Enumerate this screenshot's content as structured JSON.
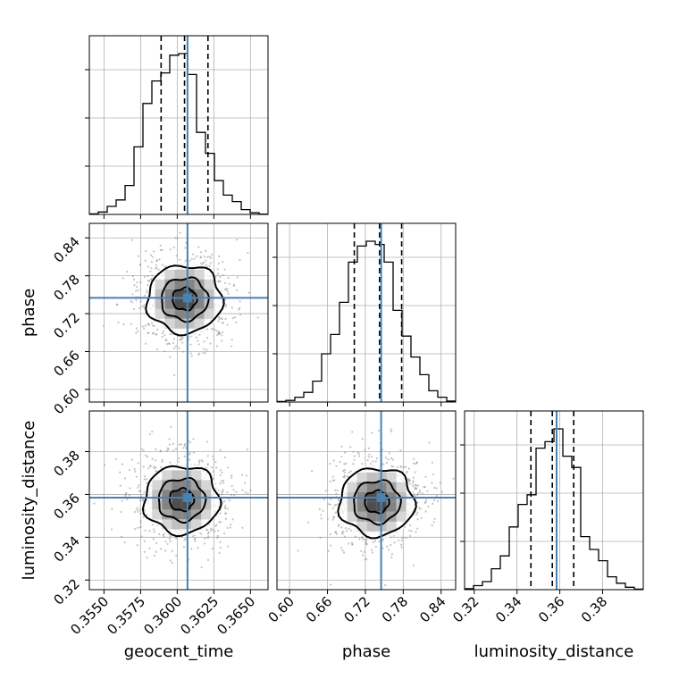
{
  "chart_data": {
    "type": "corner",
    "parameters": [
      "geocent_time",
      "phase",
      "luminosity_distance"
    ],
    "axis_labels": {
      "geocent_time": "geocent_time",
      "phase": "phase",
      "luminosity_distance": "luminosity_distance"
    },
    "ticks": {
      "geocent_time": {
        "values": [
          0.355,
          0.3575,
          0.36,
          0.3625,
          0.365
        ],
        "labels": [
          "0.3550",
          "0.3575",
          "0.3600",
          "0.3625",
          "0.3650"
        ]
      },
      "phase": {
        "values": [
          0.6,
          0.66,
          0.72,
          0.78,
          0.84
        ],
        "labels": [
          "0.60",
          "0.66",
          "0.72",
          "0.78",
          "0.84"
        ]
      },
      "luminosity_distance": {
        "values": [
          0.32,
          0.34,
          0.36,
          0.38
        ],
        "labels": [
          "0.32",
          "0.34",
          "0.36",
          "0.38"
        ]
      }
    },
    "ranges": {
      "geocent_time": [
        0.354,
        0.3662
      ],
      "phase": [
        0.58,
        0.863
      ],
      "luminosity_distance": [
        0.3155,
        0.399
      ]
    },
    "truths": {
      "geocent_time": 0.3607,
      "phase": 0.745,
      "luminosity_distance": 0.3585
    },
    "quantiles": {
      "geocent_time": [
        0.3589,
        0.3605,
        0.3621
      ],
      "phase": [
        0.7025,
        0.7425,
        0.7775
      ],
      "luminosity_distance": [
        0.3465,
        0.3565,
        0.3665
      ]
    },
    "histograms": {
      "geocent_time": {
        "bin_edges": [
          0.354,
          0.35461,
          0.35522,
          0.35583,
          0.35644,
          0.35705,
          0.35766,
          0.35827,
          0.35888,
          0.35949,
          0.3601,
          0.36071,
          0.36132,
          0.36193,
          0.36254,
          0.36315,
          0.36376,
          0.36437,
          0.36498,
          0.36559,
          0.3662
        ],
        "counts": [
          0.003,
          0.015,
          0.05,
          0.09,
          0.18,
          0.42,
          0.69,
          0.83,
          0.88,
          0.99,
          1.0,
          0.87,
          0.51,
          0.38,
          0.21,
          0.12,
          0.08,
          0.03,
          0.01,
          0.002
        ]
      },
      "phase": {
        "bin_edges": [
          0.58,
          0.59415,
          0.6083,
          0.62245,
          0.6366,
          0.65075,
          0.6649,
          0.67905,
          0.6932,
          0.70735,
          0.7215,
          0.73565,
          0.7498,
          0.76395,
          0.7781,
          0.79225,
          0.8064,
          0.82055,
          0.8347,
          0.84885,
          0.863
        ],
        "counts": [
          0.003,
          0.01,
          0.03,
          0.06,
          0.13,
          0.3,
          0.42,
          0.62,
          0.87,
          0.97,
          1.0,
          0.98,
          0.87,
          0.57,
          0.41,
          0.28,
          0.17,
          0.07,
          0.03,
          0.006
        ]
      },
      "luminosity_distance": {
        "bin_edges": [
          0.3155,
          0.319675,
          0.32385,
          0.328025,
          0.3322,
          0.336375,
          0.34055,
          0.344725,
          0.3489,
          0.353075,
          0.35725,
          0.361425,
          0.3656,
          0.369775,
          0.37395,
          0.378125,
          0.3823,
          0.386475,
          0.39065,
          0.394825,
          0.399
        ],
        "counts": [
          0.006,
          0.025,
          0.05,
          0.13,
          0.21,
          0.39,
          0.53,
          0.59,
          0.88,
          0.92,
          1.0,
          0.83,
          0.76,
          0.33,
          0.25,
          0.18,
          0.08,
          0.04,
          0.015,
          0.003
        ]
      }
    },
    "joint_centers": {
      "geocent_time|phase": [
        0.3605,
        0.743
      ],
      "geocent_time|luminosity_distance": [
        0.3603,
        0.3575
      ],
      "phase|luminosity_distance": [
        0.738,
        0.3565
      ]
    },
    "truth_color": "#4682b4",
    "line_color": "#000000",
    "grid": true
  }
}
